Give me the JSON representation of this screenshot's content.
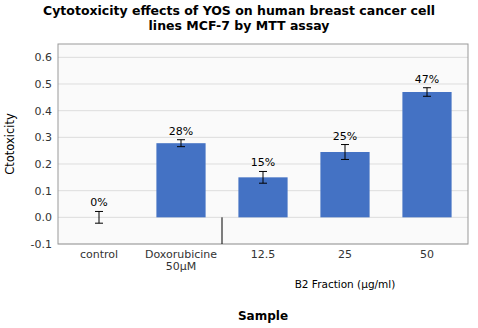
{
  "chart_data": {
    "type": "bar",
    "title": "Cytotoxicity effects of YOS on human breast cancer cell\nlines MCF-7 by MTT assay",
    "xlabel": "Sample",
    "ylabel": "Ctotoxicity",
    "categories": [
      "control",
      "Doxorubicine\n50μM",
      "12.5",
      "25",
      "50"
    ],
    "values": [
      0.0,
      0.278,
      0.15,
      0.245,
      0.47
    ],
    "errors": [
      0.022,
      0.013,
      0.022,
      0.028,
      0.016
    ],
    "value_labels": [
      "0%",
      "28%",
      "15%",
      "25%",
      "47%"
    ],
    "data_labels": true,
    "annotations": [
      "B2 Fraction (μg/ml)"
    ],
    "color": "#4472c4",
    "ylim": [
      -0.1,
      0.65
    ],
    "yticks": [
      -0.1,
      {
        "value": 0.0,
        "label": "0.0"
      },
      0.1,
      0.2,
      0.3,
      0.4,
      0.5,
      0.6
    ],
    "grid": true
  }
}
